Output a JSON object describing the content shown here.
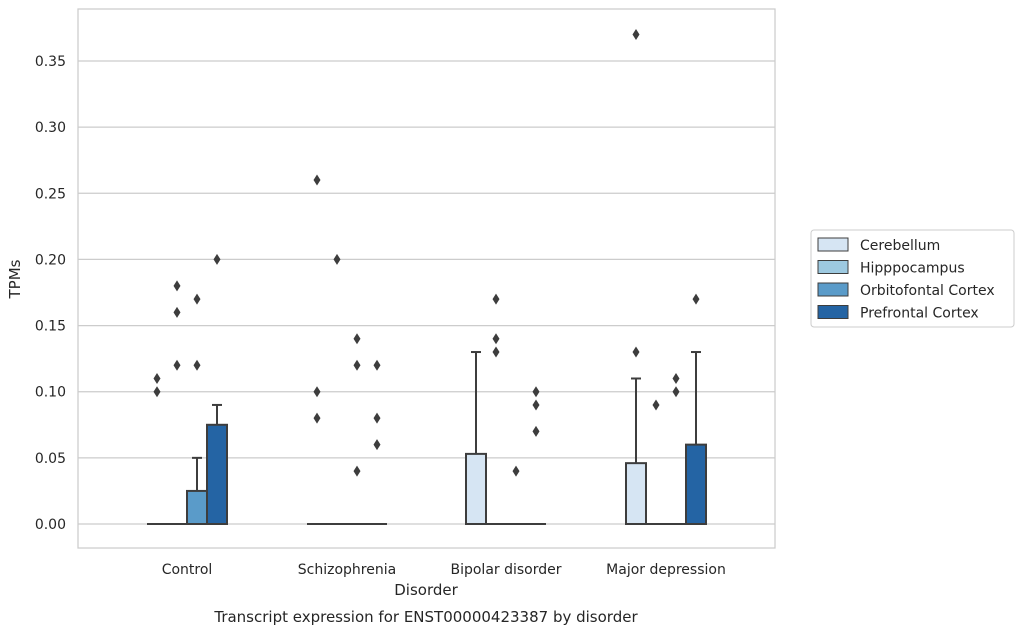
{
  "chart_data": {
    "type": "box",
    "title": "",
    "caption": "Transcript expression for ENST00000423387 by disorder",
    "xlabel": "Disorder",
    "ylabel": "TPMs",
    "ylim": [
      -0.018,
      0.388
    ],
    "yticks": [
      "0.00",
      "0.05",
      "0.10",
      "0.15",
      "0.20",
      "0.25",
      "0.30",
      "0.35"
    ],
    "grid": "horizontal",
    "legend_position": "right",
    "categories": [
      "Control",
      "Schizophrenia",
      "Bipolar disorder",
      "Major depression"
    ],
    "series": [
      {
        "name": "Cerebellum",
        "color": "#d6e5f3",
        "boxes": [
          {
            "q1": 0,
            "median": 0,
            "q3": 0,
            "whisker_low": 0,
            "whisker_high": 0,
            "outliers": [
              0.11,
              0.1
            ]
          },
          {
            "q1": 0,
            "median": 0,
            "q3": 0,
            "whisker_low": 0,
            "whisker_high": 0,
            "outliers": [
              0.26,
              0.1,
              0.08
            ]
          },
          {
            "q1": 0,
            "median": 0,
            "q3": 0.053,
            "whisker_low": 0,
            "whisker_high": 0.13,
            "outliers": []
          },
          {
            "q1": 0,
            "median": 0,
            "q3": 0.046,
            "whisker_low": 0,
            "whisker_high": 0.11,
            "outliers": [
              0.37,
              0.13
            ]
          }
        ]
      },
      {
        "name": "Hipppocampus",
        "color": "#9dc9e0",
        "boxes": [
          {
            "q1": 0,
            "median": 0,
            "q3": 0,
            "whisker_low": 0,
            "whisker_high": 0,
            "outliers": [
              0.18,
              0.16,
              0.12
            ]
          },
          {
            "q1": 0,
            "median": 0,
            "q3": 0,
            "whisker_low": 0,
            "whisker_high": 0,
            "outliers": [
              0.2
            ]
          },
          {
            "q1": 0,
            "median": 0,
            "q3": 0,
            "whisker_low": 0,
            "whisker_high": 0,
            "outliers": [
              0.17,
              0.14,
              0.13
            ]
          },
          {
            "q1": 0,
            "median": 0,
            "q3": 0,
            "whisker_low": 0,
            "whisker_high": 0,
            "outliers": [
              0.09
            ]
          }
        ]
      },
      {
        "name": "Orbitofontal Cortex",
        "color": "#5a9bc9",
        "boxes": [
          {
            "q1": 0,
            "median": 0,
            "q3": 0.025,
            "whisker_low": 0,
            "whisker_high": 0.05,
            "outliers": [
              0.17,
              0.12
            ]
          },
          {
            "q1": 0,
            "median": 0,
            "q3": 0,
            "whisker_low": 0,
            "whisker_high": 0,
            "outliers": [
              0.14,
              0.12,
              0.04
            ]
          },
          {
            "q1": 0,
            "median": 0,
            "q3": 0,
            "whisker_low": 0,
            "whisker_high": 0,
            "outliers": [
              0.04
            ]
          },
          {
            "q1": 0,
            "median": 0,
            "q3": 0,
            "whisker_low": 0,
            "whisker_high": 0,
            "outliers": [
              0.11,
              0.1
            ]
          }
        ]
      },
      {
        "name": "Prefrontal Cortex",
        "color": "#2464a4",
        "boxes": [
          {
            "q1": 0,
            "median": 0,
            "q3": 0.075,
            "whisker_low": 0,
            "whisker_high": 0.09,
            "outliers": [
              0.2
            ]
          },
          {
            "q1": 0,
            "median": 0,
            "q3": 0,
            "whisker_low": 0,
            "whisker_high": 0,
            "outliers": [
              0.12,
              0.08,
              0.06
            ]
          },
          {
            "q1": 0,
            "median": 0,
            "q3": 0,
            "whisker_low": 0,
            "whisker_high": 0,
            "outliers": [
              0.1,
              0.09,
              0.07
            ]
          },
          {
            "q1": 0,
            "median": 0,
            "q3": 0.06,
            "whisker_low": 0,
            "whisker_high": 0.13,
            "outliers": [
              0.17
            ]
          }
        ]
      }
    ]
  }
}
